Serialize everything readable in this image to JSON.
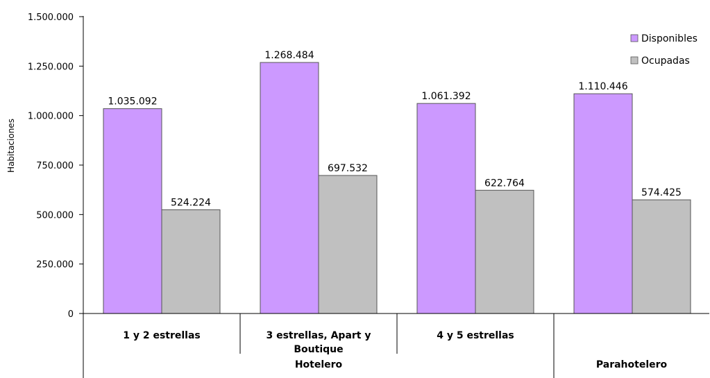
{
  "chart_data": {
    "type": "bar",
    "categories": [
      "1 y 2 estrellas",
      "3 estrellas, Apart y Boutique",
      "4 y 5 estrellas",
      ""
    ],
    "category_lines": [
      [
        "1 y 2 estrellas"
      ],
      [
        "3 estrellas, Apart y",
        "Boutique"
      ],
      [
        "4 y 5 estrellas"
      ],
      []
    ],
    "groups": [
      {
        "label": "Hotelero",
        "span": [
          0,
          2
        ]
      },
      {
        "label": "Parahotelero",
        "span": [
          3,
          3
        ]
      }
    ],
    "series": [
      {
        "name": "Disponibles",
        "color": "#cc99ff",
        "values": [
          1035092,
          1268484,
          1061392,
          1110446
        ],
        "labels": [
          "1.035.092",
          "1.268.484",
          "1.061.392",
          "1.110.446"
        ]
      },
      {
        "name": "Ocupadas",
        "color": "#c0c0c0",
        "values": [
          524224,
          697532,
          622764,
          574425
        ],
        "labels": [
          "524.224",
          "697.532",
          "622.764",
          "574.425"
        ]
      }
    ],
    "title": "",
    "xlabel": "",
    "ylabel": "Habitaciones",
    "ylim": [
      0,
      1500000
    ],
    "yticks": [
      0,
      250000,
      500000,
      750000,
      1000000,
      1250000,
      1500000
    ],
    "ytick_labels": [
      "0",
      "250.000",
      "500.000",
      "750.000",
      "1.000.000",
      "1.250.000",
      "1.500.000"
    ],
    "grid": false,
    "legend_position": "top-right",
    "bar_edge_color": "#555555"
  }
}
